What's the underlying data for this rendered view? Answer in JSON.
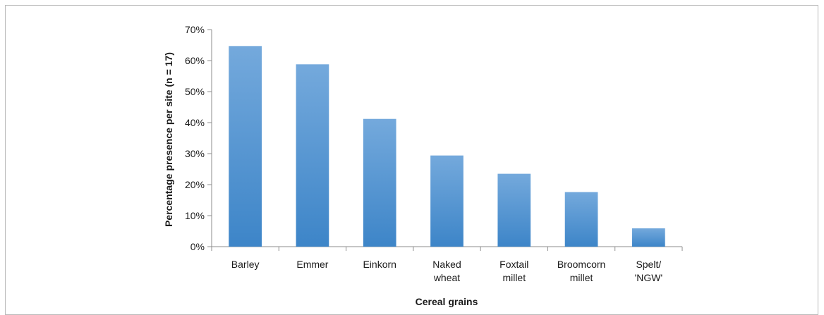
{
  "chart_data": {
    "type": "bar",
    "title": "",
    "xlabel": "Cereal grains",
    "ylabel": "Percentage presence per site (n = 17)",
    "categories": [
      [
        "Barley"
      ],
      [
        "Emmer"
      ],
      [
        "Einkorn"
      ],
      [
        "Naked",
        "wheat"
      ],
      [
        "Foxtail",
        "millet"
      ],
      [
        "Broomcorn",
        "millet"
      ],
      [
        "Spelt/",
        "'NGW'"
      ]
    ],
    "values": [
      64.7,
      58.8,
      41.2,
      29.4,
      23.5,
      17.6,
      5.9
    ],
    "ylim": [
      0,
      70
    ],
    "yticks": [
      "0%",
      "10%",
      "20%",
      "30%",
      "40%",
      "50%",
      "60%",
      "70%"
    ],
    "grid": false,
    "legend": "none",
    "colors": {
      "bar_top": "#74a9dc",
      "bar_bottom": "#3d85c8",
      "axis": "#8c8c8c"
    }
  }
}
